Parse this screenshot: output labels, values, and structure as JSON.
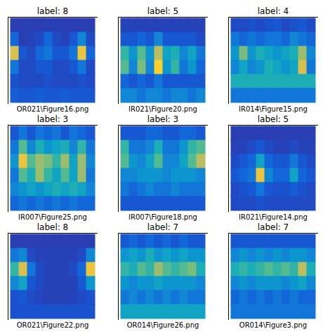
{
  "chart_data": [
    {
      "type": "heatmap",
      "title": "label: 8",
      "caption": "OR021\\Figure16.png",
      "tick_labels": false,
      "clim": [
        0,
        1
      ],
      "cells": [
        [
          0.1,
          0.1,
          0.1,
          0.1,
          0.1,
          0.1,
          0.1,
          0.1,
          0.1,
          0.1
        ],
        [
          0.25,
          0.1,
          0.12,
          0.15,
          0.25,
          0.15,
          0.12,
          0.2,
          0.35,
          0.15
        ],
        [
          0.8,
          0.2,
          0.15,
          0.25,
          0.3,
          0.2,
          0.2,
          0.3,
          0.85,
          0.25
        ],
        [
          0.3,
          0.15,
          0.15,
          0.2,
          0.2,
          0.15,
          0.15,
          0.2,
          0.3,
          0.15
        ],
        [
          0.18,
          0.15,
          0.15,
          0.15,
          0.18,
          0.15,
          0.15,
          0.15,
          0.18,
          0.15
        ],
        [
          0.22,
          0.2,
          0.2,
          0.22,
          0.2,
          0.2,
          0.22,
          0.2,
          0.2,
          0.2
        ]
      ]
    },
    {
      "type": "heatmap",
      "title": "label: 5",
      "caption": "IR021\\Figure20.png",
      "tick_labels": false,
      "clim": [
        0,
        1
      ],
      "cells": [
        [
          0.12,
          0.12,
          0.12,
          0.12,
          0.12,
          0.12,
          0.12,
          0.12,
          0.12,
          0.12
        ],
        [
          0.2,
          0.2,
          0.25,
          0.2,
          0.35,
          0.2,
          0.2,
          0.2,
          0.2,
          0.15
        ],
        [
          0.55,
          0.4,
          0.6,
          0.4,
          0.75,
          0.45,
          0.5,
          0.35,
          0.45,
          0.3
        ],
        [
          0.6,
          0.35,
          0.65,
          0.35,
          0.9,
          0.4,
          0.55,
          0.3,
          0.4,
          0.25
        ],
        [
          0.25,
          0.2,
          0.25,
          0.2,
          0.3,
          0.2,
          0.2,
          0.2,
          0.2,
          0.2
        ],
        [
          0.35,
          0.35,
          0.3,
          0.35,
          0.35,
          0.3,
          0.35,
          0.35,
          0.3,
          0.35
        ]
      ]
    },
    {
      "type": "heatmap",
      "title": "label: 4",
      "caption": "IR014\\Figure15.png",
      "tick_labels": false,
      "clim": [
        0,
        1
      ],
      "cells": [
        [
          0.15,
          0.15,
          0.18,
          0.15,
          0.18,
          0.2,
          0.15,
          0.18,
          0.2,
          0.15
        ],
        [
          0.3,
          0.25,
          0.3,
          0.25,
          0.3,
          0.3,
          0.25,
          0.35,
          0.3,
          0.25
        ],
        [
          0.4,
          0.65,
          0.4,
          0.5,
          0.45,
          0.4,
          0.45,
          0.5,
          0.7,
          0.35
        ],
        [
          0.35,
          0.45,
          0.35,
          0.4,
          0.5,
          0.45,
          0.4,
          0.45,
          0.8,
          0.3
        ],
        [
          0.5,
          0.5,
          0.5,
          0.5,
          0.5,
          0.5,
          0.5,
          0.5,
          0.5,
          0.5
        ],
        [
          0.3,
          0.3,
          0.3,
          0.3,
          0.3,
          0.3,
          0.3,
          0.3,
          0.3,
          0.3
        ]
      ]
    },
    {
      "type": "heatmap",
      "title": "label: 3",
      "caption": "IR007\\Figure25.png",
      "tick_labels": false,
      "clim": [
        0,
        1
      ],
      "cells": [
        [
          0.2,
          0.3,
          0.2,
          0.3,
          0.25,
          0.3,
          0.2,
          0.3,
          0.25,
          0.2
        ],
        [
          0.3,
          0.6,
          0.35,
          0.5,
          0.4,
          0.45,
          0.5,
          0.35,
          0.55,
          0.3
        ],
        [
          0.4,
          0.85,
          0.6,
          0.7,
          0.65,
          0.55,
          0.7,
          0.45,
          0.7,
          0.35
        ],
        [
          0.3,
          0.6,
          0.5,
          0.7,
          0.55,
          0.45,
          0.6,
          0.45,
          0.7,
          0.3
        ],
        [
          0.35,
          0.4,
          0.45,
          0.4,
          0.45,
          0.5,
          0.45,
          0.5,
          0.45,
          0.35
        ],
        [
          0.25,
          0.3,
          0.25,
          0.3,
          0.25,
          0.3,
          0.25,
          0.3,
          0.25,
          0.25
        ]
      ]
    },
    {
      "type": "heatmap",
      "title": "label: 3",
      "caption": "IR007\\Figure18.png",
      "tick_labels": false,
      "clim": [
        0,
        1
      ],
      "cells": [
        [
          0.2,
          0.2,
          0.2,
          0.25,
          0.25,
          0.2,
          0.2,
          0.25,
          0.25,
          0.2
        ],
        [
          0.55,
          0.3,
          0.3,
          0.35,
          0.5,
          0.3,
          0.3,
          0.4,
          0.55,
          0.6
        ],
        [
          0.6,
          0.4,
          0.35,
          0.45,
          0.6,
          0.35,
          0.35,
          0.45,
          0.6,
          0.75
        ],
        [
          0.35,
          0.35,
          0.4,
          0.4,
          0.4,
          0.35,
          0.4,
          0.4,
          0.4,
          0.35
        ],
        [
          0.3,
          0.25,
          0.3,
          0.35,
          0.3,
          0.3,
          0.35,
          0.3,
          0.3,
          0.3
        ],
        [
          0.2,
          0.2,
          0.2,
          0.2,
          0.2,
          0.2,
          0.2,
          0.2,
          0.2,
          0.2
        ]
      ]
    },
    {
      "type": "heatmap",
      "title": "label: 5",
      "caption": "IR021\\Figure14.png",
      "tick_labels": false,
      "clim": [
        0,
        1
      ],
      "cells": [
        [
          0.1,
          0.1,
          0.1,
          0.1,
          0.1,
          0.1,
          0.1,
          0.1,
          0.1,
          0.1
        ],
        [
          0.12,
          0.12,
          0.15,
          0.2,
          0.15,
          0.12,
          0.12,
          0.15,
          0.12,
          0.12
        ],
        [
          0.15,
          0.2,
          0.25,
          0.45,
          0.25,
          0.2,
          0.2,
          0.3,
          0.2,
          0.15
        ],
        [
          0.2,
          0.25,
          0.3,
          0.85,
          0.35,
          0.25,
          0.25,
          0.45,
          0.25,
          0.2
        ],
        [
          0.15,
          0.18,
          0.2,
          0.3,
          0.2,
          0.18,
          0.18,
          0.22,
          0.18,
          0.15
        ],
        [
          0.15,
          0.15,
          0.15,
          0.18,
          0.15,
          0.15,
          0.15,
          0.15,
          0.15,
          0.15
        ]
      ]
    },
    {
      "type": "heatmap",
      "title": "label: 8",
      "caption": "OR021\\Figure22.png",
      "tick_labels": false,
      "clim": [
        0,
        1
      ],
      "cells": [
        [
          0.1,
          0.1,
          0.1,
          0.1,
          0.1,
          0.1,
          0.1,
          0.1,
          0.1,
          0.1
        ],
        [
          0.3,
          0.35,
          0.15,
          0.12,
          0.12,
          0.12,
          0.12,
          0.12,
          0.15,
          0.35
        ],
        [
          0.55,
          0.8,
          0.3,
          0.15,
          0.12,
          0.12,
          0.12,
          0.15,
          0.25,
          0.85
        ],
        [
          0.35,
          0.45,
          0.2,
          0.15,
          0.12,
          0.12,
          0.12,
          0.12,
          0.2,
          0.4
        ],
        [
          0.18,
          0.2,
          0.15,
          0.13,
          0.12,
          0.12,
          0.12,
          0.12,
          0.15,
          0.18
        ],
        [
          0.18,
          0.18,
          0.18,
          0.18,
          0.18,
          0.18,
          0.18,
          0.18,
          0.18,
          0.18
        ]
      ]
    },
    {
      "type": "heatmap",
      "title": "label: 7",
      "caption": "OR014\\Figure26.png",
      "tick_labels": false,
      "clim": [
        0,
        1
      ],
      "cells": [
        [
          0.2,
          0.25,
          0.2,
          0.25,
          0.2,
          0.25,
          0.2,
          0.25,
          0.2,
          0.2
        ],
        [
          0.4,
          0.45,
          0.4,
          0.5,
          0.4,
          0.45,
          0.4,
          0.45,
          0.4,
          0.4
        ],
        [
          0.55,
          0.5,
          0.6,
          0.55,
          0.7,
          0.6,
          0.55,
          0.6,
          0.65,
          0.5
        ],
        [
          0.4,
          0.35,
          0.4,
          0.4,
          0.45,
          0.4,
          0.4,
          0.4,
          0.4,
          0.35
        ],
        [
          0.3,
          0.35,
          0.3,
          0.35,
          0.3,
          0.35,
          0.3,
          0.35,
          0.3,
          0.3
        ],
        [
          0.45,
          0.45,
          0.45,
          0.45,
          0.45,
          0.45,
          0.45,
          0.45,
          0.45,
          0.45
        ]
      ]
    },
    {
      "type": "heatmap",
      "title": "label: 7",
      "caption": "OR014\\Figure3.png",
      "tick_labels": false,
      "clim": [
        0,
        1
      ],
      "cells": [
        [
          0.2,
          0.2,
          0.2,
          0.2,
          0.2,
          0.2,
          0.2,
          0.2,
          0.2,
          0.2
        ],
        [
          0.35,
          0.4,
          0.35,
          0.4,
          0.35,
          0.4,
          0.35,
          0.4,
          0.4,
          0.35
        ],
        [
          0.5,
          0.55,
          0.5,
          0.55,
          0.6,
          0.55,
          0.6,
          0.55,
          0.75,
          0.5
        ],
        [
          0.35,
          0.4,
          0.35,
          0.4,
          0.4,
          0.4,
          0.35,
          0.4,
          0.45,
          0.35
        ],
        [
          0.25,
          0.3,
          0.25,
          0.3,
          0.25,
          0.3,
          0.25,
          0.3,
          0.25,
          0.25
        ],
        [
          0.3,
          0.3,
          0.3,
          0.3,
          0.3,
          0.3,
          0.3,
          0.3,
          0.3,
          0.3
        ]
      ]
    }
  ]
}
